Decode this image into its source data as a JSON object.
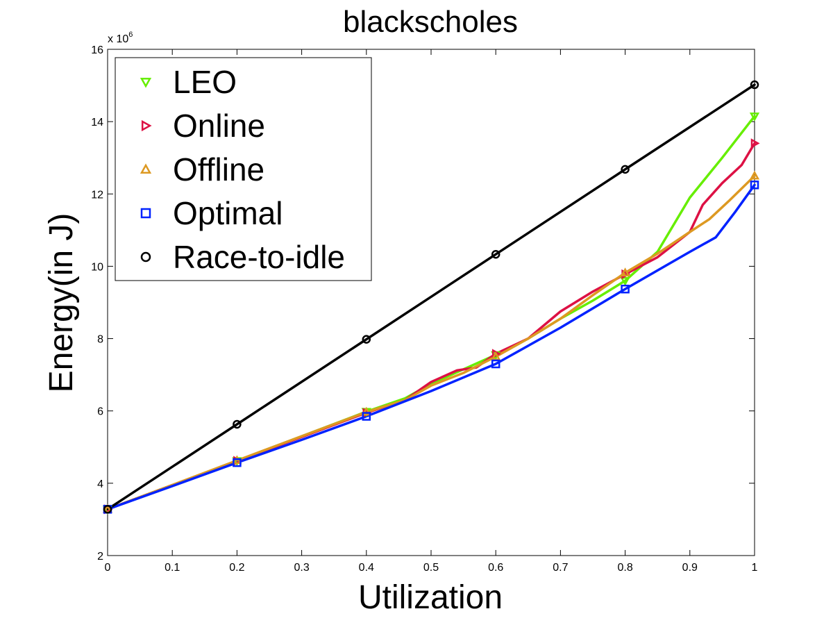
{
  "chart_data": {
    "type": "line",
    "title": "blackscholes",
    "xlabel": "Utilization",
    "ylabel": "Energy(in J)",
    "y_multiplier_base": "x 10",
    "y_multiplier_exp": "6",
    "xlim": [
      0,
      1
    ],
    "ylim": [
      2,
      16
    ],
    "x_ticks": [
      0,
      0.1,
      0.2,
      0.3,
      0.4,
      0.5,
      0.6,
      0.7,
      0.8,
      0.9,
      1
    ],
    "x_tick_labels": [
      "0",
      "0.1",
      "0.2",
      "0.3",
      "0.4",
      "0.5",
      "0.6",
      "0.7",
      "0.8",
      "0.9",
      "1"
    ],
    "y_ticks": [
      2,
      4,
      6,
      8,
      10,
      12,
      14,
      16
    ],
    "y_tick_labels": [
      "2",
      "4",
      "6",
      "8",
      "10",
      "12",
      "14",
      "16"
    ],
    "grid": false,
    "legend_position": "top-left",
    "series": [
      {
        "name": "LEO",
        "color": "#66ee00",
        "marker": "triangle-down",
        "marker_x": [
          0,
          0.2,
          0.4,
          0.6,
          0.8,
          1
        ],
        "marker_y": [
          3.28,
          4.62,
          5.98,
          7.55,
          9.6,
          14.15
        ],
        "line": [
          [
            0,
            3.28
          ],
          [
            0.1,
            3.95
          ],
          [
            0.2,
            4.62
          ],
          [
            0.3,
            5.3
          ],
          [
            0.4,
            5.98
          ],
          [
            0.46,
            6.35
          ],
          [
            0.5,
            6.75
          ],
          [
            0.55,
            7.15
          ],
          [
            0.6,
            7.55
          ],
          [
            0.65,
            8.0
          ],
          [
            0.7,
            8.55
          ],
          [
            0.75,
            9.05
          ],
          [
            0.8,
            9.6
          ],
          [
            0.85,
            10.4
          ],
          [
            0.9,
            11.9
          ],
          [
            0.95,
            13.0
          ],
          [
            1,
            14.15
          ]
        ]
      },
      {
        "name": "Online",
        "color": "#dd1144",
        "marker": "triangle-right",
        "marker_x": [
          0,
          0.2,
          0.4,
          0.6,
          0.8,
          1
        ],
        "marker_y": [
          3.28,
          4.62,
          5.95,
          7.58,
          9.78,
          13.4
        ],
        "line": [
          [
            0,
            3.28
          ],
          [
            0.1,
            3.95
          ],
          [
            0.2,
            4.62
          ],
          [
            0.3,
            5.28
          ],
          [
            0.4,
            5.95
          ],
          [
            0.46,
            6.3
          ],
          [
            0.5,
            6.8
          ],
          [
            0.54,
            7.12
          ],
          [
            0.57,
            7.2
          ],
          [
            0.6,
            7.58
          ],
          [
            0.65,
            8.0
          ],
          [
            0.7,
            8.75
          ],
          [
            0.75,
            9.3
          ],
          [
            0.8,
            9.78
          ],
          [
            0.85,
            10.25
          ],
          [
            0.9,
            10.95
          ],
          [
            0.92,
            11.7
          ],
          [
            0.95,
            12.3
          ],
          [
            0.98,
            12.8
          ],
          [
            1,
            13.4
          ]
        ]
      },
      {
        "name": "Offline",
        "color": "#dd9922",
        "marker": "triangle-up",
        "marker_x": [
          0,
          0.2,
          0.4,
          0.6,
          0.8,
          1
        ],
        "marker_y": [
          3.28,
          4.63,
          5.97,
          7.5,
          9.82,
          12.5
        ],
        "line": [
          [
            0,
            3.28
          ],
          [
            0.1,
            3.95
          ],
          [
            0.2,
            4.63
          ],
          [
            0.3,
            5.3
          ],
          [
            0.4,
            5.97
          ],
          [
            0.46,
            6.3
          ],
          [
            0.5,
            6.7
          ],
          [
            0.55,
            7.05
          ],
          [
            0.6,
            7.5
          ],
          [
            0.65,
            8.0
          ],
          [
            0.7,
            8.55
          ],
          [
            0.75,
            9.2
          ],
          [
            0.8,
            9.82
          ],
          [
            0.85,
            10.35
          ],
          [
            0.9,
            10.95
          ],
          [
            0.93,
            11.3
          ],
          [
            0.96,
            11.8
          ],
          [
            1,
            12.5
          ]
        ]
      },
      {
        "name": "Optimal",
        "color": "#0022ff",
        "marker": "square",
        "marker_x": [
          0,
          0.2,
          0.4,
          0.6,
          0.8,
          1
        ],
        "marker_y": [
          3.28,
          4.57,
          5.85,
          7.3,
          9.37,
          12.25
        ],
        "line": [
          [
            0,
            3.28
          ],
          [
            0.1,
            3.92
          ],
          [
            0.2,
            4.57
          ],
          [
            0.3,
            5.2
          ],
          [
            0.4,
            5.85
          ],
          [
            0.5,
            6.55
          ],
          [
            0.6,
            7.3
          ],
          [
            0.7,
            8.3
          ],
          [
            0.8,
            9.37
          ],
          [
            0.9,
            10.4
          ],
          [
            0.94,
            10.8
          ],
          [
            0.97,
            11.5
          ],
          [
            1,
            12.25
          ]
        ]
      },
      {
        "name": "Race-to-idle",
        "color": "#000000",
        "marker": "circle",
        "marker_x": [
          0,
          0.2,
          0.4,
          0.6,
          0.8,
          1
        ],
        "marker_y": [
          3.28,
          5.63,
          7.98,
          10.33,
          12.68,
          15.02
        ],
        "line": [
          [
            0,
            3.28
          ],
          [
            0.2,
            5.63
          ],
          [
            0.4,
            7.98
          ],
          [
            0.6,
            10.33
          ],
          [
            0.8,
            12.68
          ],
          [
            1,
            15.02
          ]
        ]
      }
    ]
  }
}
